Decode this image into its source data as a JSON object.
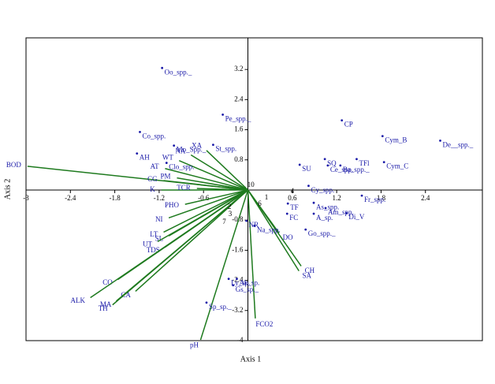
{
  "chart_data": {
    "type": "biplot",
    "xlabel": "Axis 1",
    "ylabel": "Axis 2",
    "xlim": [
      -3,
      3.17
    ],
    "ylim": [
      -4,
      4.04
    ],
    "xticks": [
      -3,
      -2.4,
      -1.8,
      -1.2,
      -0.6,
      0.6,
      1.2,
      1.8,
      2.4
    ],
    "yticks": [
      3.2,
      2.4,
      1.6,
      0.8,
      -0.8,
      -1.6,
      -2.4,
      -3.2,
      -4
    ],
    "point_color": "#1a1aa8",
    "vector_color": "#1e7a1e",
    "species": {
      "names": [
        "Oo_spp._",
        "Pe_spp._",
        "Co_spp.",
        "AH",
        "Mo_Spp._",
        "St_spp.",
        "Clo_spp.",
        "CP",
        "Cym_B",
        "De__spp._",
        "Cym_C",
        "SU",
        "SQ",
        "Ce_spp.",
        "Ba_spp._",
        "TFl",
        "Cy_spp.",
        "Fr_spp.",
        "As_spp.",
        "Am_spp.",
        "Di_V",
        "A_sp.",
        "FC",
        "TF",
        "Go_spp._",
        "Na_spp.",
        "NR",
        "Ly_sp.",
        "Ak_sp.",
        "Gs_sp._",
        "Sp_sp._"
      ],
      "x": [
        -1.16,
        -0.34,
        -1.46,
        -1.5,
        -1.0,
        -0.47,
        -1.1,
        1.27,
        1.82,
        2.6,
        1.84,
        0.7,
        1.04,
        1.08,
        1.25,
        1.47,
        0.82,
        1.54,
        0.89,
        1.05,
        1.33,
        0.89,
        0.53,
        0.54,
        0.78,
        0.09,
        -0.02,
        -0.26,
        -0.15,
        -0.2,
        -0.56
      ],
      "y": [
        3.24,
        2.0,
        1.54,
        0.97,
        1.18,
        1.2,
        0.72,
        1.85,
        1.43,
        1.31,
        0.74,
        0.67,
        0.82,
        0.65,
        0.65,
        0.82,
        0.11,
        -0.15,
        -0.34,
        -0.48,
        -0.61,
        -0.63,
        -0.63,
        -0.36,
        -1.05,
        -0.95,
        -0.82,
        -2.36,
        -2.36,
        -2.53,
        -2.99
      ]
    },
    "vectors": {
      "names": [
        "BOD",
        "AT",
        "CG",
        "K",
        "PM",
        "WT",
        "NA",
        "XA",
        "TCR",
        "PHO",
        "NI",
        "LT",
        "SL",
        "UT",
        "TDS",
        "CO",
        "CA",
        "ALK",
        "MA",
        "TH",
        "pH",
        "FCO2",
        "SA",
        "CH",
        "DO"
      ],
      "x": [
        -2.98,
        -1.12,
        -1.14,
        -1.17,
        -0.96,
        -0.93,
        -0.77,
        -0.56,
        -0.69,
        -0.85,
        -1.07,
        -1.14,
        -1.07,
        -1.22,
        -1.12,
        -1.76,
        -1.52,
        -2.13,
        -1.78,
        -1.83,
        -0.64,
        0.1,
        0.69,
        0.72,
        0.42
      ],
      "y": [
        0.63,
        0.57,
        0.25,
        0,
        0.32,
        0.78,
        0.93,
        1.05,
        0.04,
        -0.38,
        -0.74,
        -1.12,
        -1.22,
        -1.37,
        -1.52,
        -2.38,
        -2.69,
        -2.86,
        -2.95,
        -3.05,
        -3.98,
        -3.41,
        -2.15,
        -2.02,
        -1.14
      ]
    },
    "sites": {
      "names": [
        "10",
        "1",
        "2",
        "3",
        "4",
        "6",
        "7"
      ],
      "x": [
        0.04,
        0.25,
        -0.25,
        -0.24,
        0.6,
        0.16,
        -0.32
      ],
      "y": [
        0.13,
        -0.21,
        -0.46,
        -0.65,
        -0.04,
        -0.38,
        -0.86
      ]
    }
  }
}
